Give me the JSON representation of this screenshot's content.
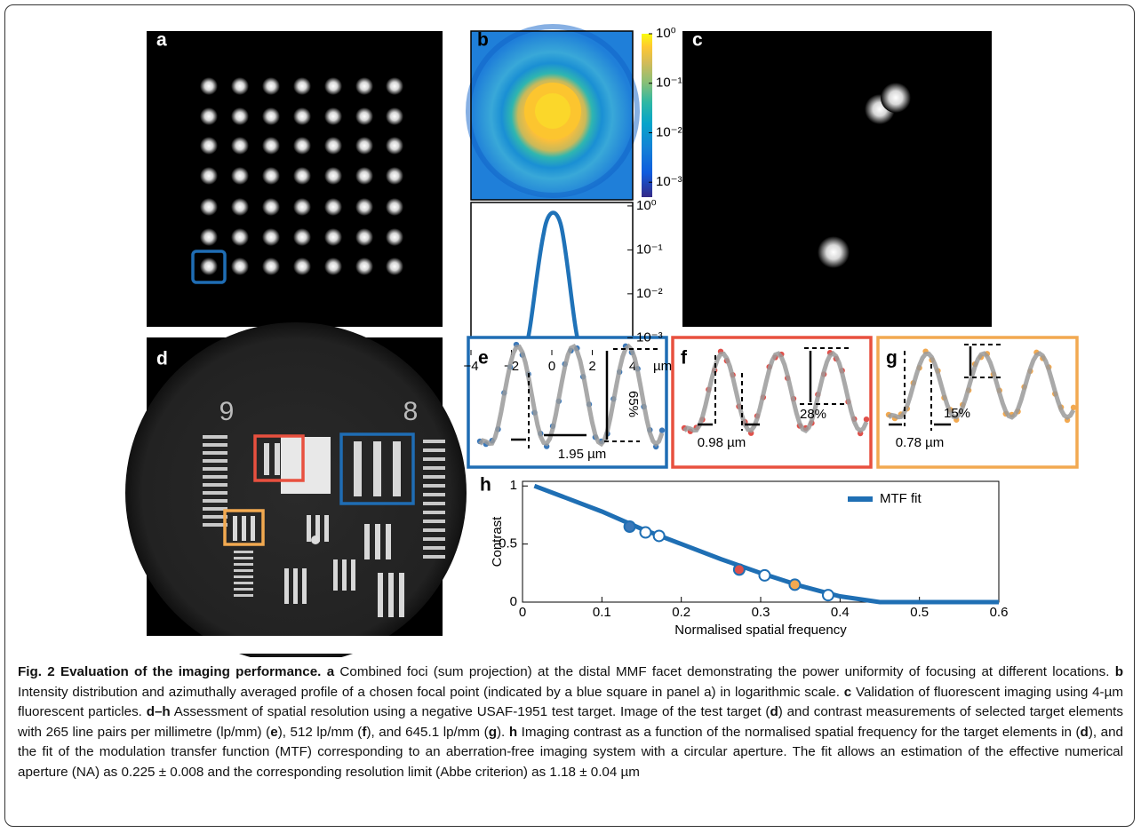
{
  "panel_labels": [
    "a",
    "b",
    "c",
    "d",
    "e",
    "f",
    "g",
    "h"
  ],
  "panel_b": {
    "log_scale": true,
    "clim": [
      0.0005,
      1
    ],
    "colorbar_ticks": [
      {
        "value": 1,
        "label": "10⁰"
      },
      {
        "value": 0.1,
        "label": "10⁻¹"
      },
      {
        "value": 0.01,
        "label": "10⁻²"
      },
      {
        "value": 0.001,
        "label": "10⁻³"
      }
    ],
    "profile_ylim": [
      0.0004,
      1.2
    ],
    "profile_yticks": [
      {
        "value": 1,
        "label": "10⁰"
      },
      {
        "value": 0.1,
        "label": "10⁻¹"
      },
      {
        "value": 0.01,
        "label": "10⁻²"
      },
      {
        "value": 0.001,
        "label": "10⁻³"
      }
    ],
    "profile_xlim": [
      -4,
      4
    ],
    "profile_xticks": [
      {
        "value": -4,
        "label": "−4"
      },
      {
        "value": -2,
        "label": "−2"
      },
      0,
      2,
      4
    ],
    "x_unit": "µm"
  },
  "panel_d": {
    "group_labels": [
      "9",
      "8"
    ]
  },
  "panel_e": {
    "contrast": "65%",
    "period": "1.95 µm",
    "color": "#3b78b9"
  },
  "panel_f": {
    "contrast": "28%",
    "period": "0.98 µm",
    "color": "#e0504a"
  },
  "panel_g": {
    "contrast": "15%",
    "period": "0.78 µm",
    "color": "#f2a950"
  },
  "chart_data": {
    "type": "line",
    "xlabel": "Normalised spatial frequency",
    "ylabel": "Contrast",
    "xlim": [
      0,
      0.6
    ],
    "ylim": [
      0,
      1.04
    ],
    "xticks": [
      0,
      0.1,
      0.2,
      0.3,
      0.4,
      0.5,
      0.6
    ],
    "yticks": [
      0,
      0.5,
      1
    ],
    "legend": "upper right",
    "series": [
      {
        "name": "MTF fit",
        "color": "#1f6fb4",
        "x": [
          0.015,
          0.05,
          0.1,
          0.15,
          0.2,
          0.25,
          0.3,
          0.35,
          0.4,
          0.45,
          0.5,
          0.55,
          0.6
        ],
        "values": [
          1,
          0.91,
          0.78,
          0.63,
          0.5,
          0.37,
          0.25,
          0.14,
          0.05,
          0,
          0,
          0,
          0
        ]
      }
    ],
    "points": {
      "x": [
        0.135,
        0.155,
        0.172,
        0.273,
        0.305,
        0.343,
        0.385
      ],
      "values": [
        0.65,
        0.6,
        0.57,
        0.28,
        0.23,
        0.15,
        0.06
      ],
      "colors": [
        "#3b78b9",
        "#ffffff",
        "#ffffff",
        "#e0504a",
        "#ffffff",
        "#f2a950",
        "#ffffff"
      ]
    }
  },
  "caption": [
    {
      "text": "Fig. 2 Evaluation of the imaging performance.",
      "bold": true
    },
    {
      "text": " ",
      "bold": false
    },
    {
      "text": "a",
      "bold": true
    },
    {
      "text": " Combined foci (sum projection) at the distal MMF facet demonstrating the power uniformity of focusing at different locations. ",
      "bold": false
    },
    {
      "text": "b",
      "bold": true
    },
    {
      "text": " Intensity distribution and azimuthally averaged profile of a chosen focal point (indicated by a blue square in panel a) in logarithmic scale. ",
      "bold": false
    },
    {
      "text": "c",
      "bold": true
    },
    {
      "text": " Validation of fluorescent imaging using 4-µm fluorescent particles. ",
      "bold": false
    },
    {
      "text": "d–h",
      "bold": true
    },
    {
      "text": " Assessment of spatial resolution using a negative USAF-1951 test target. Image of the test target (",
      "bold": false
    },
    {
      "text": "d",
      "bold": true
    },
    {
      "text": ") and contrast measurements of selected target elements with 265 line pairs per millimetre (lp/mm) (",
      "bold": false
    },
    {
      "text": "e",
      "bold": true
    },
    {
      "text": "), 512 lp/mm (",
      "bold": false
    },
    {
      "text": "f",
      "bold": true
    },
    {
      "text": "), and 645.1 lp/mm (",
      "bold": false
    },
    {
      "text": "g",
      "bold": true
    },
    {
      "text": "). ",
      "bold": false
    },
    {
      "text": "h",
      "bold": true
    },
    {
      "text": " Imaging contrast as a function of the normalised spatial frequency for the target elements in (",
      "bold": false
    },
    {
      "text": "d",
      "bold": true
    },
    {
      "text": "), and the fit of the modulation transfer function (MTF) corresponding to an aberration-free imaging system with a circular aperture. The fit allows an estimation of the effective numerical aperture (NA) as 0.225 ± 0.008 and the corresponding resolution limit (Abbe criterion) as 1.18 ± 0.04 µm",
      "bold": false
    }
  ]
}
